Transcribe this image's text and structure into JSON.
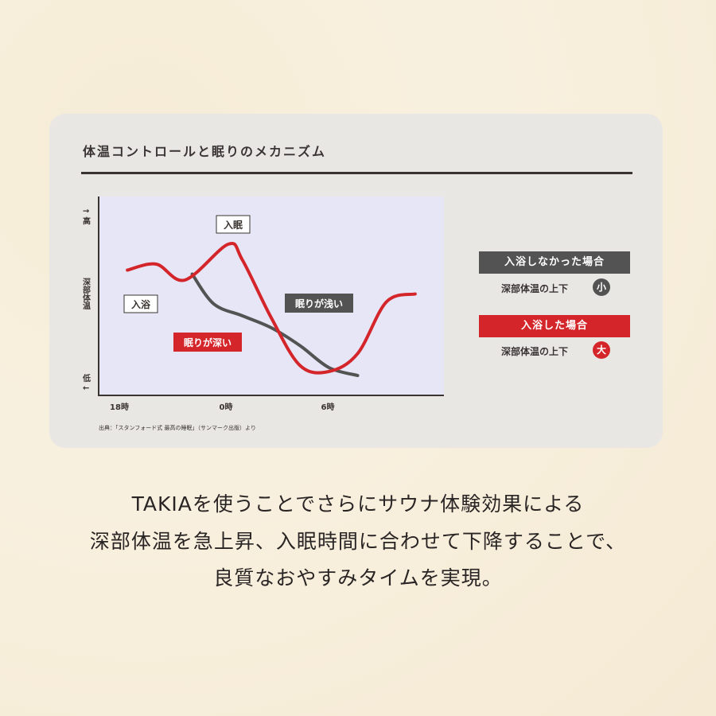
{
  "chart_data": {
    "type": "line",
    "title": "体温コントロールと眠りのメカニズム",
    "ylabel_high": "↑ 高",
    "ylabel_mid": "深部体温",
    "ylabel_low": "低 ↓",
    "x_ticks": [
      "18時",
      "0時",
      "6時"
    ],
    "series": [
      {
        "name": "入浴しなかった場合",
        "color": "#535353",
        "points": [
          [
            0.25,
            61
          ],
          [
            1,
            46
          ],
          [
            2,
            40
          ],
          [
            3,
            34
          ],
          [
            4,
            25
          ],
          [
            5,
            14
          ],
          [
            6,
            10
          ]
        ]
      },
      {
        "name": "入浴した場合",
        "color": "#d4262a",
        "points": [
          [
            -2,
            63
          ],
          [
            -1,
            66
          ],
          [
            0,
            58
          ],
          [
            1.5,
            76
          ],
          [
            2,
            68
          ],
          [
            3,
            39
          ],
          [
            4,
            15
          ],
          [
            5,
            12
          ],
          [
            6,
            21
          ],
          [
            7,
            47
          ],
          [
            8,
            51
          ]
        ]
      }
    ],
    "annotations": [
      {
        "text": "入眠",
        "style": "outlined"
      },
      {
        "text": "入浴",
        "style": "outlined"
      },
      {
        "text": "眠りが浅い",
        "style": "filled-gray"
      },
      {
        "text": "眠りが深い",
        "style": "filled-red"
      }
    ],
    "source": "出典：「スタンフォード式 最高の睡眠」（サンマーク出版）より",
    "grid": false
  },
  "legend": [
    {
      "label": "入浴しなかった場合",
      "sub": "深部体温の上下",
      "badge": "小",
      "color": "#535353"
    },
    {
      "label": "入浴した場合",
      "sub": "深部体温の上下",
      "badge": "大",
      "color": "#d4262a"
    }
  ],
  "colors": {
    "plot_bg": "#e6e6f7",
    "accent_red": "#d4262a",
    "gray": "#535353"
  },
  "caption": [
    "TAKIAを使うことでさらにサウナ体験効果による",
    "深部体温を急上昇、入眠時間に合わせて下降することで、",
    "良質なおやすみタイムを実現。"
  ]
}
